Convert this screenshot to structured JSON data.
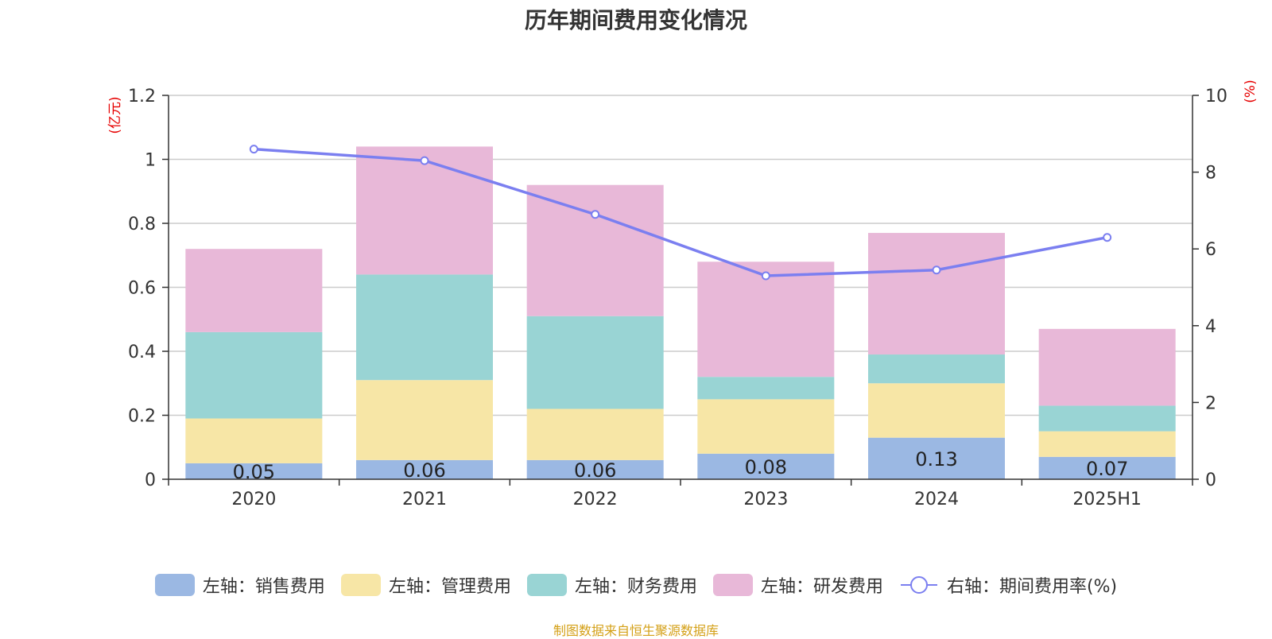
{
  "title": "历年期间费用变化情况",
  "footer": "制图数据来自恒生聚源数据库",
  "chart_data": {
    "type": "bar",
    "stacked": true,
    "categories": [
      "2020",
      "2021",
      "2022",
      "2023",
      "2024",
      "2025H1"
    ],
    "left_axis": {
      "label": "(亿元)",
      "ylim": [
        0,
        1.2
      ],
      "ticks": [
        "0",
        "0.2",
        "0.4",
        "0.6",
        "0.8",
        "1",
        "1.2"
      ]
    },
    "right_axis": {
      "label": "(%)",
      "ylim": [
        0,
        10
      ],
      "ticks": [
        "0",
        "2",
        "4",
        "6",
        "8",
        "10"
      ]
    },
    "grid": true,
    "legend_position": "bottom",
    "series": [
      {
        "name": "左轴：销售费用",
        "axis": "left",
        "type": "bar",
        "color": "#9bb8e3",
        "values": [
          0.05,
          0.06,
          0.06,
          0.08,
          0.13,
          0.07
        ],
        "labels": [
          "0.05",
          "0.06",
          "0.06",
          "0.08",
          "0.13",
          "0.07"
        ]
      },
      {
        "name": "左轴：管理费用",
        "axis": "left",
        "type": "bar",
        "color": "#f7e6a6",
        "values": [
          0.14,
          0.25,
          0.16,
          0.17,
          0.17,
          0.08
        ]
      },
      {
        "name": "左轴：财务费用",
        "axis": "left",
        "type": "bar",
        "color": "#99d4d4",
        "values": [
          0.27,
          0.33,
          0.29,
          0.07,
          0.09,
          0.08
        ]
      },
      {
        "name": "左轴：研发费用",
        "axis": "left",
        "type": "bar",
        "color": "#e8b8d8",
        "values": [
          0.26,
          0.4,
          0.41,
          0.36,
          0.38,
          0.24
        ]
      },
      {
        "name": "右轴：期间费用率(%)",
        "axis": "right",
        "type": "line",
        "color": "#7b7ff0",
        "values": [
          8.6,
          8.3,
          6.9,
          5.3,
          5.45,
          6.3
        ]
      }
    ]
  }
}
